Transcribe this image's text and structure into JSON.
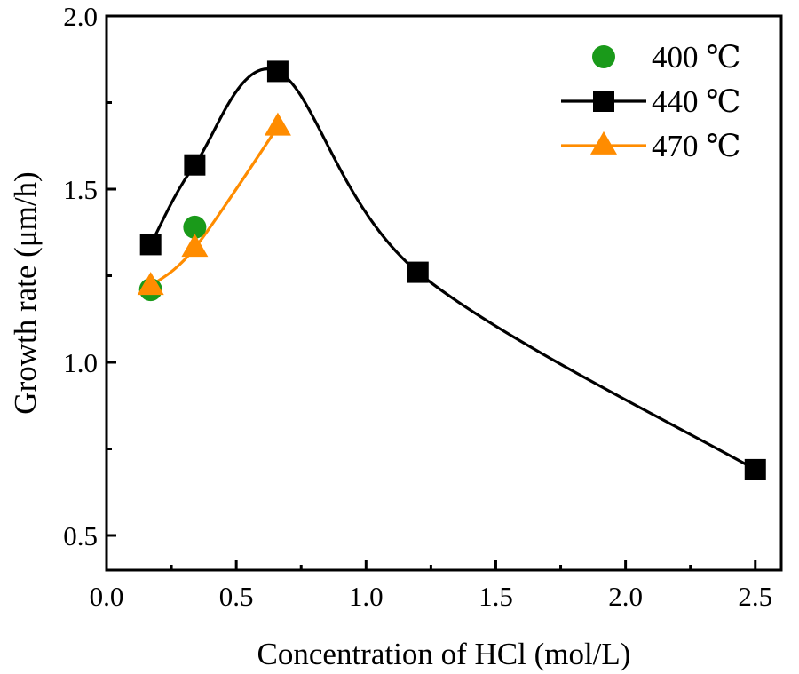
{
  "chart_data": {
    "type": "line",
    "title": "",
    "xlabel": "Concentration of HCl (mol/L)",
    "ylabel": "Growth rate (μm/h)",
    "xlim": [
      0.0,
      2.6
    ],
    "ylim": [
      0.4,
      2.0
    ],
    "xticks": [
      0.0,
      0.5,
      1.0,
      1.5,
      2.0,
      2.5
    ],
    "xtick_labels": [
      "0.0",
      "0.5",
      "1.0",
      "1.5",
      "2.0",
      "2.5"
    ],
    "yticks": [
      0.5,
      1.0,
      1.5,
      2.0
    ],
    "ytick_labels": [
      "0.5",
      "1.0",
      "1.5",
      "2.0"
    ],
    "grid": false,
    "legend_position": "top-right",
    "series": [
      {
        "name": "400 ℃",
        "marker": "circle",
        "color": "#1a9a1a",
        "line": false,
        "x": [
          0.17,
          0.34
        ],
        "y": [
          1.21,
          1.39
        ]
      },
      {
        "name": "440 ℃",
        "marker": "square",
        "color": "#000000",
        "line": true,
        "x": [
          0.17,
          0.34,
          0.66,
          1.2,
          2.5
        ],
        "y": [
          1.34,
          1.57,
          1.84,
          1.26,
          0.69
        ]
      },
      {
        "name": "470 ℃",
        "marker": "triangle",
        "color": "#ff8c00",
        "line": true,
        "x": [
          0.17,
          0.34,
          0.66
        ],
        "y": [
          1.22,
          1.33,
          1.68
        ]
      }
    ]
  }
}
